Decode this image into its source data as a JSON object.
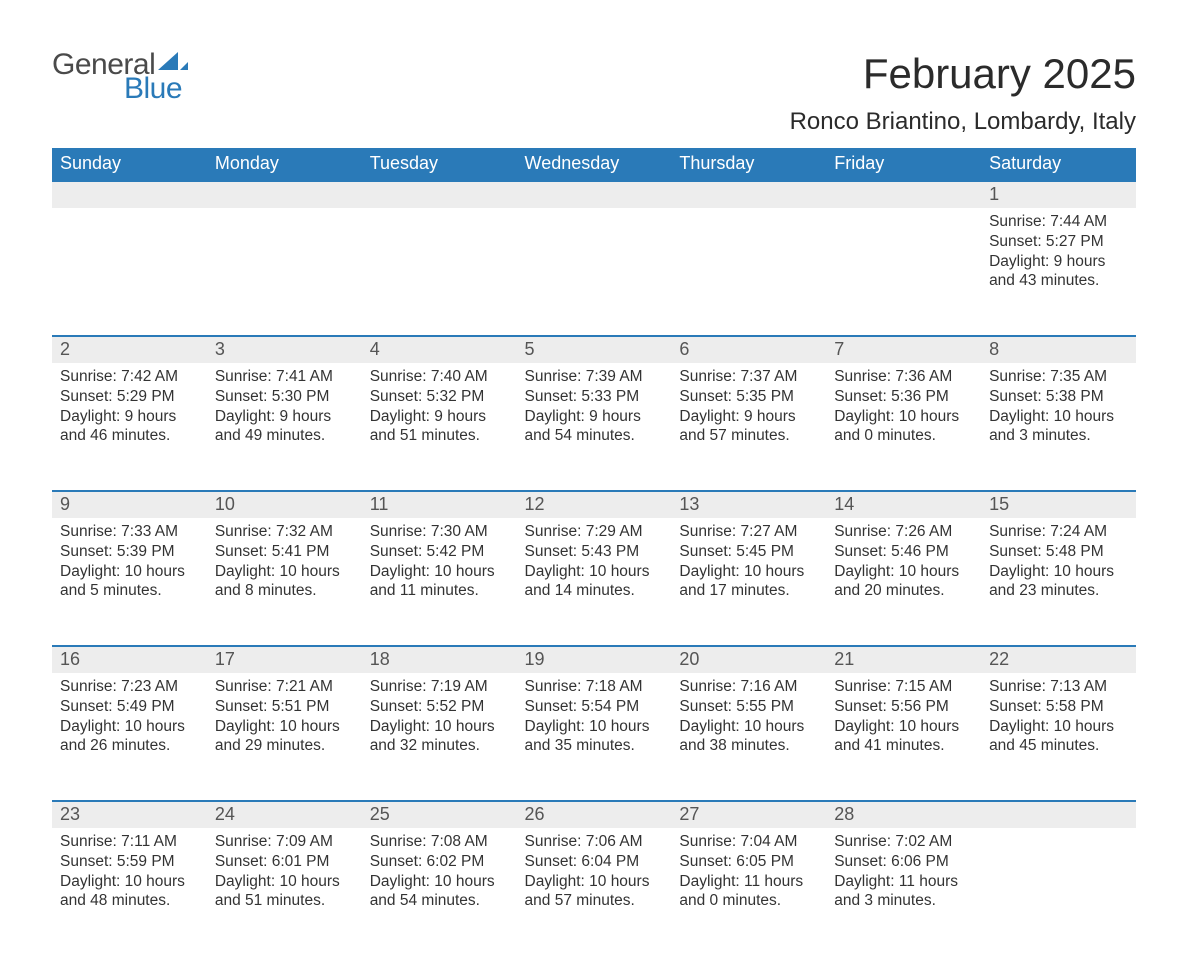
{
  "logo": {
    "general": "General",
    "blue": "Blue"
  },
  "title": {
    "month": "February 2025",
    "location": "Ronco Briantino, Lombardy, Italy"
  },
  "colors": {
    "header_bg": "#2a7ab8",
    "header_fg": "#ffffff",
    "daynum_bg": "#ededed",
    "daynum_fg": "#555555",
    "row_border": "#2a7ab8",
    "body_text": "#333333",
    "page_bg": "#ffffff",
    "logo_gray": "#4a4a4a",
    "logo_blue": "#2a7ab8"
  },
  "typography": {
    "month_fontsize": 42,
    "location_fontsize": 24,
    "weekday_fontsize": 18,
    "daynum_fontsize": 18,
    "cell_fontsize": 15.5,
    "logo_fontsize": 30
  },
  "weekdays": [
    "Sunday",
    "Monday",
    "Tuesday",
    "Wednesday",
    "Thursday",
    "Friday",
    "Saturday"
  ],
  "labels": {
    "sunrise": "Sunrise:",
    "sunset": "Sunset:",
    "daylight": "Daylight:"
  },
  "weeks": [
    [
      null,
      null,
      null,
      null,
      null,
      null,
      {
        "n": "1",
        "sr": "7:44 AM",
        "ss": "5:27 PM",
        "dl": "9 hours and 43 minutes."
      }
    ],
    [
      {
        "n": "2",
        "sr": "7:42 AM",
        "ss": "5:29 PM",
        "dl": "9 hours and 46 minutes."
      },
      {
        "n": "3",
        "sr": "7:41 AM",
        "ss": "5:30 PM",
        "dl": "9 hours and 49 minutes."
      },
      {
        "n": "4",
        "sr": "7:40 AM",
        "ss": "5:32 PM",
        "dl": "9 hours and 51 minutes."
      },
      {
        "n": "5",
        "sr": "7:39 AM",
        "ss": "5:33 PM",
        "dl": "9 hours and 54 minutes."
      },
      {
        "n": "6",
        "sr": "7:37 AM",
        "ss": "5:35 PM",
        "dl": "9 hours and 57 minutes."
      },
      {
        "n": "7",
        "sr": "7:36 AM",
        "ss": "5:36 PM",
        "dl": "10 hours and 0 minutes."
      },
      {
        "n": "8",
        "sr": "7:35 AM",
        "ss": "5:38 PM",
        "dl": "10 hours and 3 minutes."
      }
    ],
    [
      {
        "n": "9",
        "sr": "7:33 AM",
        "ss": "5:39 PM",
        "dl": "10 hours and 5 minutes."
      },
      {
        "n": "10",
        "sr": "7:32 AM",
        "ss": "5:41 PM",
        "dl": "10 hours and 8 minutes."
      },
      {
        "n": "11",
        "sr": "7:30 AM",
        "ss": "5:42 PM",
        "dl": "10 hours and 11 minutes."
      },
      {
        "n": "12",
        "sr": "7:29 AM",
        "ss": "5:43 PM",
        "dl": "10 hours and 14 minutes."
      },
      {
        "n": "13",
        "sr": "7:27 AM",
        "ss": "5:45 PM",
        "dl": "10 hours and 17 minutes."
      },
      {
        "n": "14",
        "sr": "7:26 AM",
        "ss": "5:46 PM",
        "dl": "10 hours and 20 minutes."
      },
      {
        "n": "15",
        "sr": "7:24 AM",
        "ss": "5:48 PM",
        "dl": "10 hours and 23 minutes."
      }
    ],
    [
      {
        "n": "16",
        "sr": "7:23 AM",
        "ss": "5:49 PM",
        "dl": "10 hours and 26 minutes."
      },
      {
        "n": "17",
        "sr": "7:21 AM",
        "ss": "5:51 PM",
        "dl": "10 hours and 29 minutes."
      },
      {
        "n": "18",
        "sr": "7:19 AM",
        "ss": "5:52 PM",
        "dl": "10 hours and 32 minutes."
      },
      {
        "n": "19",
        "sr": "7:18 AM",
        "ss": "5:54 PM",
        "dl": "10 hours and 35 minutes."
      },
      {
        "n": "20",
        "sr": "7:16 AM",
        "ss": "5:55 PM",
        "dl": "10 hours and 38 minutes."
      },
      {
        "n": "21",
        "sr": "7:15 AM",
        "ss": "5:56 PM",
        "dl": "10 hours and 41 minutes."
      },
      {
        "n": "22",
        "sr": "7:13 AM",
        "ss": "5:58 PM",
        "dl": "10 hours and 45 minutes."
      }
    ],
    [
      {
        "n": "23",
        "sr": "7:11 AM",
        "ss": "5:59 PM",
        "dl": "10 hours and 48 minutes."
      },
      {
        "n": "24",
        "sr": "7:09 AM",
        "ss": "6:01 PM",
        "dl": "10 hours and 51 minutes."
      },
      {
        "n": "25",
        "sr": "7:08 AM",
        "ss": "6:02 PM",
        "dl": "10 hours and 54 minutes."
      },
      {
        "n": "26",
        "sr": "7:06 AM",
        "ss": "6:04 PM",
        "dl": "10 hours and 57 minutes."
      },
      {
        "n": "27",
        "sr": "7:04 AM",
        "ss": "6:05 PM",
        "dl": "11 hours and 0 minutes."
      },
      {
        "n": "28",
        "sr": "7:02 AM",
        "ss": "6:06 PM",
        "dl": "11 hours and 3 minutes."
      },
      null
    ]
  ]
}
